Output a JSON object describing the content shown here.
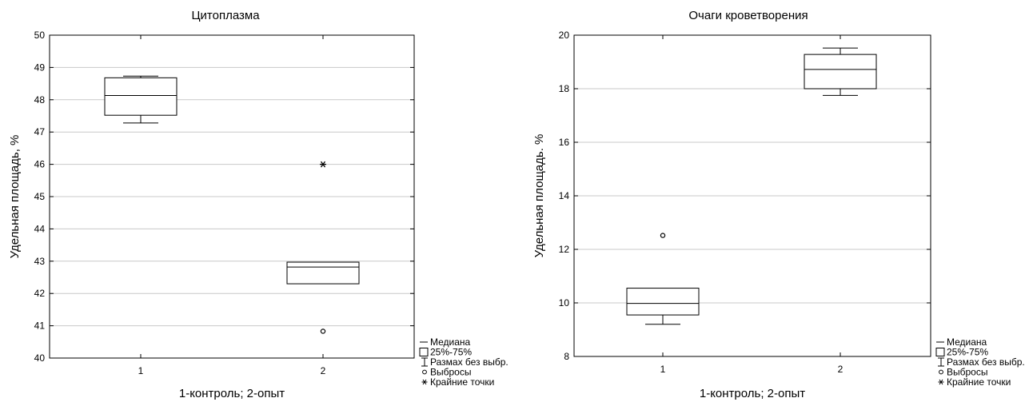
{
  "chart_data": [
    {
      "type": "boxplot",
      "title": "Цитоплазма",
      "xlabel": "1-контроль; 2-опыт",
      "ylabel": "Удельная площадь, %",
      "categories": [
        "1",
        "2"
      ],
      "ylim": [
        40,
        50
      ],
      "yticks": [
        40,
        41,
        42,
        43,
        44,
        45,
        46,
        47,
        48,
        49,
        50
      ],
      "grid": true,
      "boxes": [
        {
          "category": "1",
          "median": 48.13,
          "q1": 47.52,
          "q3": 48.68,
          "whisker_low": 47.28,
          "whisker_high": 48.73,
          "outliers": [],
          "extremes": []
        },
        {
          "category": "2",
          "median": 42.82,
          "q1": 42.3,
          "q3": 42.97,
          "whisker_low": 42.3,
          "whisker_high": 42.97,
          "outliers": [
            40.83
          ],
          "extremes": [
            46.0
          ]
        }
      ]
    },
    {
      "type": "boxplot",
      "title": "Очаги кроветворения",
      "xlabel": "1-контроль; 2-опыт",
      "ylabel": "Удельная площадь. %",
      "categories": [
        "1",
        "2"
      ],
      "ylim": [
        8,
        20
      ],
      "yticks": [
        8,
        10,
        12,
        14,
        16,
        18,
        20
      ],
      "grid": true,
      "boxes": [
        {
          "category": "1",
          "median": 9.98,
          "q1": 9.55,
          "q3": 10.55,
          "whisker_low": 9.2,
          "whisker_high": 10.55,
          "outliers": [
            12.52
          ],
          "extremes": []
        },
        {
          "category": "2",
          "median": 18.72,
          "q1": 18.0,
          "q3": 19.28,
          "whisker_low": 17.75,
          "whisker_high": 19.52,
          "outliers": [],
          "extremes": []
        }
      ]
    }
  ],
  "legend": {
    "position": "bottom-right",
    "items": [
      "Медиана",
      "25%-75%",
      "Размах без выбр.",
      "Выбросы",
      "Крайние точки"
    ]
  }
}
